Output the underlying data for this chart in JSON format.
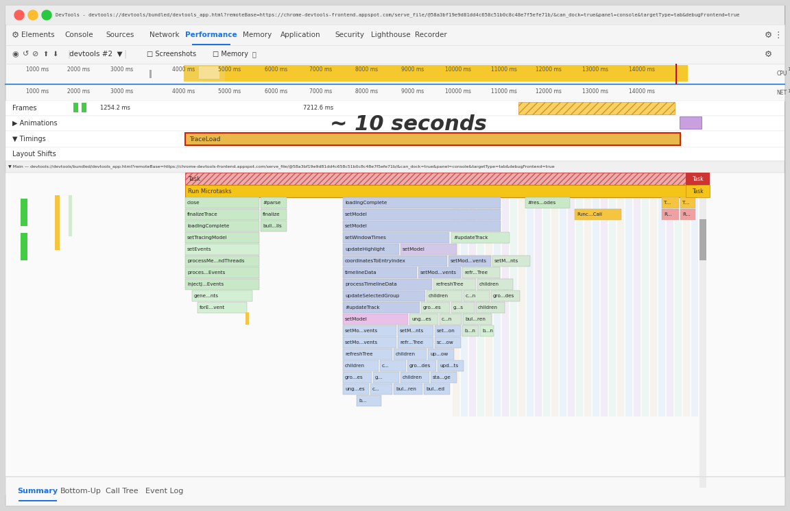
{
  "title": "DevTools - devtools://devtools/bundled/devtools_app.html?remoteBase=https://chrome-devtools-frontend.appspot.com/serve_file/@58a3bf19e9d81dd4c658c51b0c8c48e7f5efe71b/&can_dock=true&panel=console&targetType=tab&debugFrontend=true",
  "bg_color": "#d8d8d8",
  "window_bg": "#ffffff",
  "titlebar_bg": "#ececec",
  "nav_bg": "#f5f5f5",
  "toolbar_bg": "#f5f5f5",
  "tab_labels": [
    "Elements",
    "Console",
    "Sources",
    "Network",
    "Performance",
    "Memory",
    "Application",
    "Security",
    "Lighthouse",
    "Recorder"
  ],
  "active_tab": "Performance",
  "active_tab_color": "#1a73e8",
  "timeline_ticks": [
    "1000 ms",
    "2000 ms",
    "3000 ms",
    "4000 ms",
    "5000 ms",
    "6000 ms",
    "7000 ms",
    "8000 ms",
    "9000 ms",
    "10000 ms",
    "11000 ms",
    "12000 ms",
    "13000 ms",
    "14000 ms"
  ],
  "cpu_color": "#f5c418",
  "net_label": "NET",
  "cpu_label": "CPU",
  "annotation_text": "~ 10 seconds",
  "frames_text1": "1254.2 ms",
  "frames_text2": "7212.6 ms",
  "traceload_label": "TraceLoad",
  "traceload_fill": "#e8b84a",
  "traceload_border": "#cc2200",
  "main_url": "Main — devtools://devtools/bundled/devtools_app.html?remoteBase=https://chrome-devtools-frontend.appspot.com/serve_file/@58a3bf19e9d81dd4c658c51b0c8c48e7f5efe71b/&can_dock=true&panel=console&targetType=tab&debugFrontend=true",
  "task_fill": "#e8a0a0",
  "task_hatch": "////",
  "task_border": "#cc4444",
  "microtask_fill": "#f5c418",
  "microtask_border": "#cc8800",
  "bottom_tabs": [
    "Summary",
    "Bottom-Up",
    "Call Tree",
    "Event Log"
  ],
  "active_bottom_tab": "Summary",
  "blue_accent": "#1a73e8",
  "purple_fill": "#c8a0e0"
}
